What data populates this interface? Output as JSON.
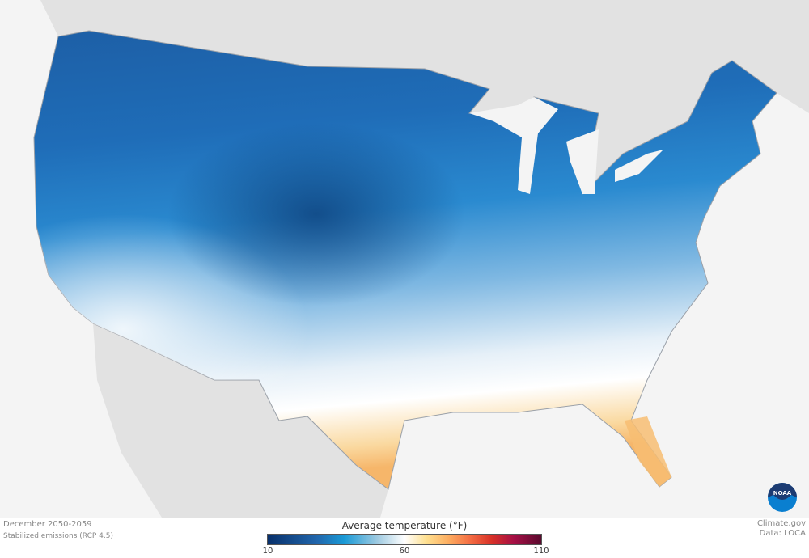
{
  "map": {
    "period": "December 2050-2059",
    "scenario": "Stabilized emissions (RCP 4.5)",
    "variable_title": "Average temperature (°F)",
    "colorbar": {
      "min": 10,
      "mid": 60,
      "max": 110,
      "tick_labels": [
        "10",
        "60",
        "110"
      ],
      "colors": [
        "#08306b",
        "#2166ac",
        "#1a9ad6",
        "#9ecae1",
        "#ffffff",
        "#fee090",
        "#fdae61",
        "#f46d43",
        "#d73027",
        "#a50f45",
        "#5a0a2e"
      ]
    },
    "credit_source": "Climate.gov",
    "credit_data": "Data: LOCA",
    "logo_text": "NOAA"
  }
}
